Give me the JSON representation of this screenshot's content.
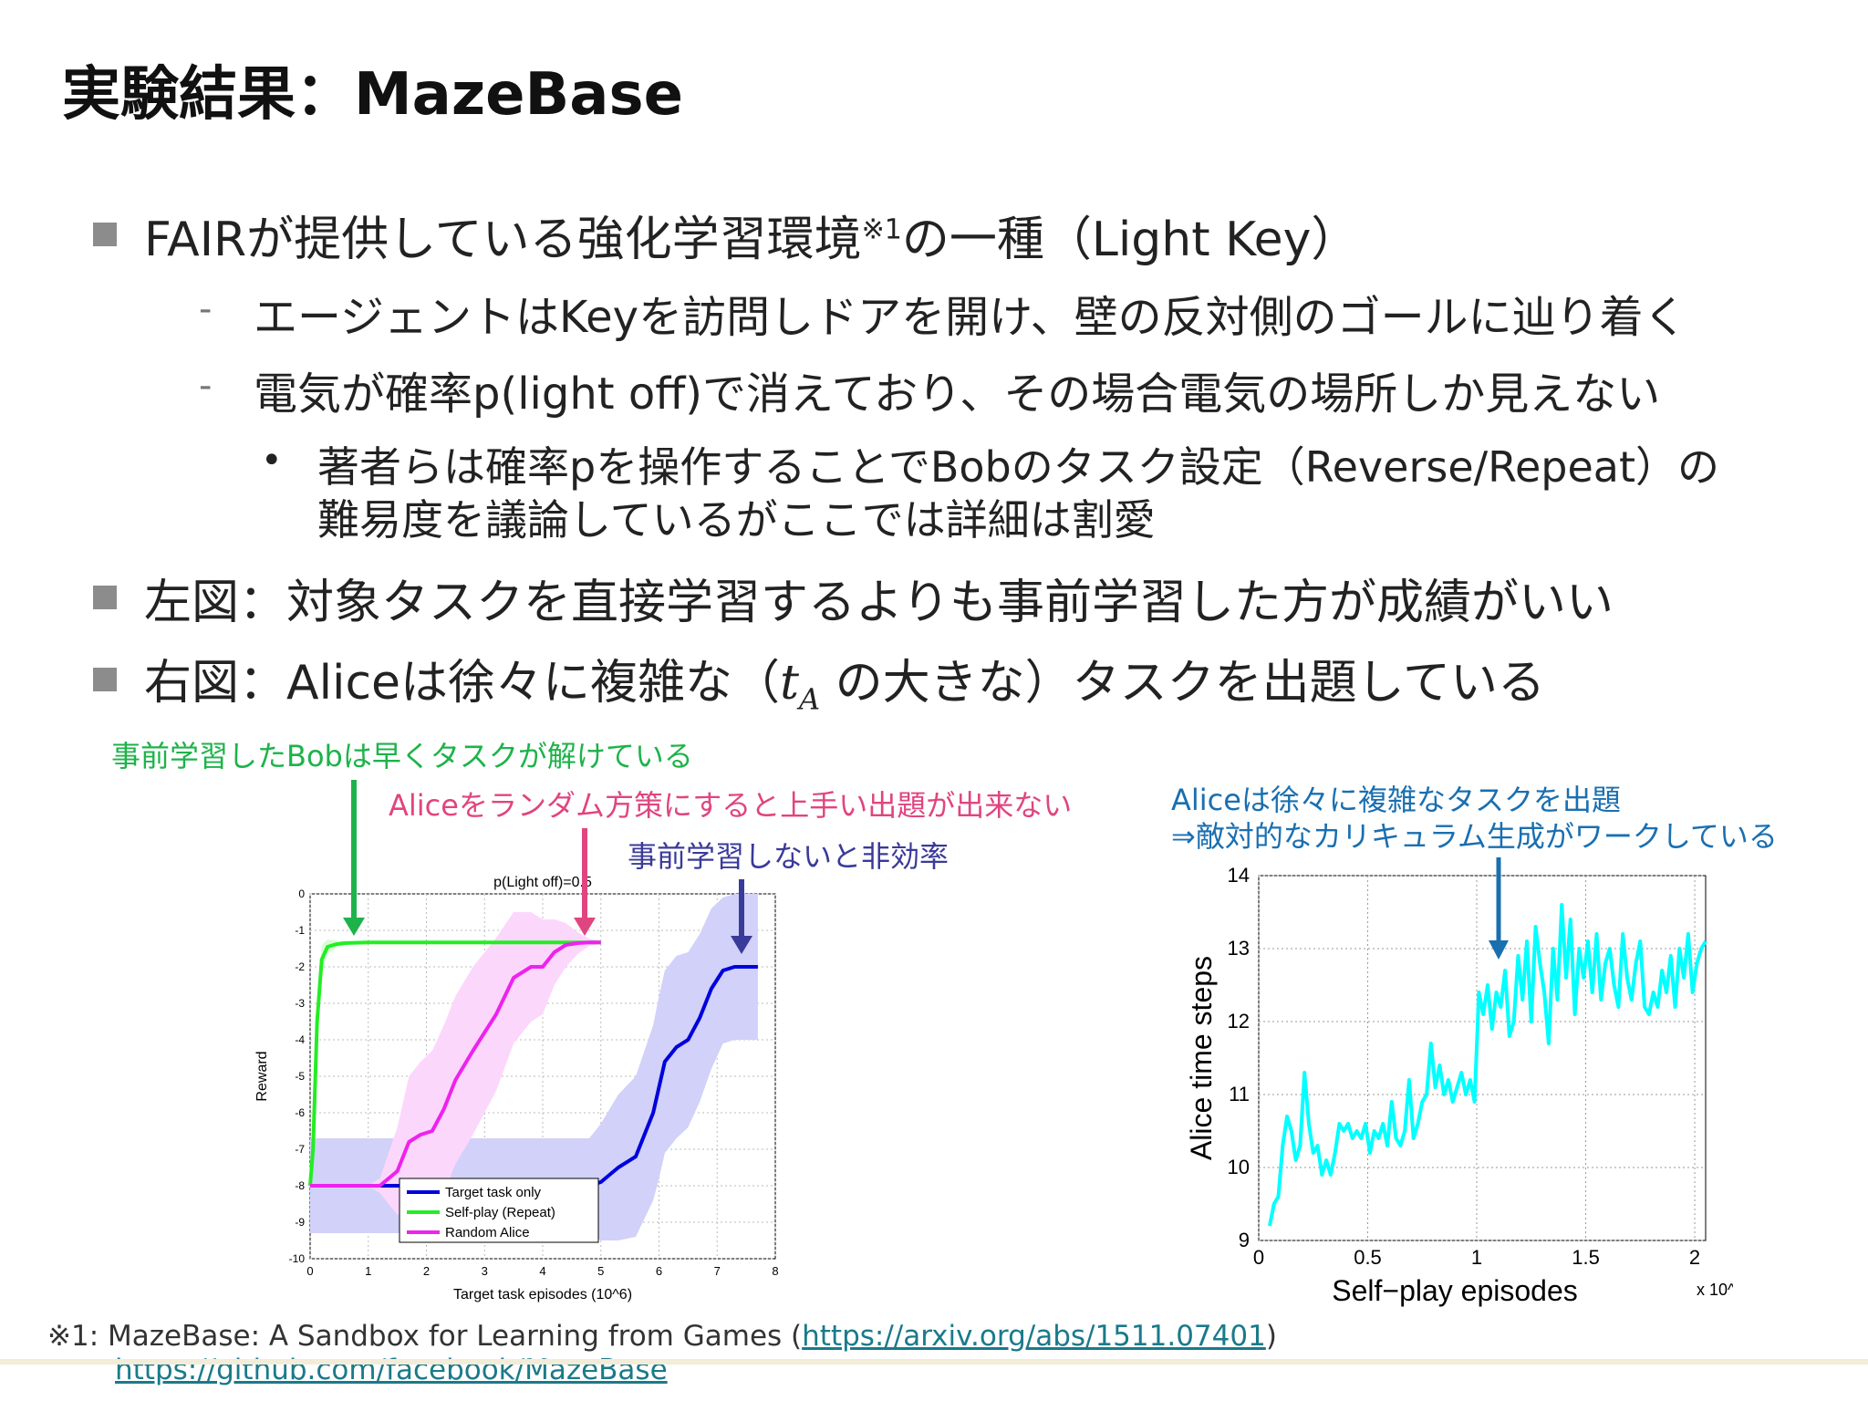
{
  "title": "実験結果：MazeBase",
  "bullets": {
    "b1": {
      "text": "FAIRが提供している強化学習環境",
      "sup": "※1",
      "rest": "の一種（Light Key）"
    },
    "b1_sub1": "エージェントはKeyを訪問しドアを開け、壁の反対側のゴールに辿り着く",
    "b1_sub2": "電気が確率p(light off)で消えており、その場合電気の場所しか見えない",
    "b1_sub2_item_line1": "著者らは確率pを操作することでBobのタスク設定（Reverse/Repeat）の",
    "b1_sub2_item_line2": "難易度を議論しているがここでは詳細は割愛",
    "b2": "左図：対象タスクを直接学習するよりも事前学習した方が成績がいい",
    "b3_pre": "右図：Aliceは徐々に複雑な（",
    "b3_math": "t",
    "b3_sub": "A",
    "b3_post": " の大きな）タスクを出題している"
  },
  "annotations": {
    "green": "事前学習したBobは早くタスクが解けている",
    "pink": "Aliceをランダム方策にすると上手い出題が出来ない",
    "navy": "事前学習しないと非効率",
    "blue_line1": "Aliceは徐々に複雑なタスクを出題",
    "blue_line2": "⇒敵対的なカリキュラム生成がワークしている"
  },
  "colors": {
    "green": "#1db34a",
    "pink": "#e0457f",
    "navy": "#3a3a9a",
    "blue": "#1a6fb0",
    "cyan": "#00ffff"
  },
  "footnote": {
    "mark": "※1: ",
    "text": "MazeBase: A Sandbox for Learning from Games (",
    "link1": "https://arxiv.org/abs/1511.07401",
    "close": ")",
    "link2": "https://github.com/facebook/MazeBase"
  },
  "chart_data": [
    {
      "type": "line",
      "title": "p(Light off)=0.5",
      "xlabel": "Target task episodes (10^6)",
      "ylabel": "Reward",
      "xlim": [
        0,
        8
      ],
      "ylim": [
        -10,
        0
      ],
      "xticks": [
        "0",
        "1",
        "2",
        "3",
        "4",
        "5",
        "6",
        "7",
        "8"
      ],
      "yticks": [
        "0",
        "-1",
        "-2",
        "-3",
        "-4",
        "-5",
        "-6",
        "-7",
        "-8",
        "-9",
        "-10"
      ],
      "grid": true,
      "legend": "bottom-center",
      "series": [
        {
          "name": "Target task only",
          "color": "#0000dd",
          "x": [
            0,
            4.8,
            5.0,
            5.3,
            5.6,
            5.9,
            6.0,
            6.1,
            6.3,
            6.5,
            6.7,
            6.9,
            7.1,
            7.3,
            7.5,
            7.7
          ],
          "y": [
            -8,
            -8,
            -7.9,
            -7.5,
            -7.2,
            -6.0,
            -5.3,
            -4.6,
            -4.2,
            -4.0,
            -3.4,
            -2.6,
            -2.1,
            -2.0,
            -2.0,
            -2.0
          ],
          "band": [
            1.3,
            1.3,
            1.6,
            2.0,
            2.2,
            2.4,
            2.5,
            2.5,
            2.5,
            2.4,
            2.3,
            2.2,
            2.0,
            2.0,
            2.0,
            2.0
          ]
        },
        {
          "name": "Self-play (Repeat)",
          "color": "#22ee22",
          "x": [
            0,
            0.05,
            0.12,
            0.2,
            0.3,
            0.45,
            0.6,
            1.0,
            2.0,
            3.0,
            4.0,
            5.0
          ],
          "y": [
            -8,
            -7.0,
            -3.5,
            -1.8,
            -1.45,
            -1.38,
            -1.35,
            -1.33,
            -1.33,
            -1.33,
            -1.33,
            -1.33
          ],
          "band": [
            0,
            0.3,
            0.6,
            0.4,
            0.2,
            0.1,
            0.05,
            0.02,
            0.02,
            0.02,
            0.02,
            0.02
          ]
        },
        {
          "name": "Random Alice",
          "color": "#ee22ee",
          "x": [
            0,
            1.0,
            1.2,
            1.5,
            1.7,
            1.9,
            2.1,
            2.3,
            2.5,
            2.8,
            3.0,
            3.2,
            3.5,
            3.8,
            4.0,
            4.2,
            4.4,
            4.6,
            4.8,
            5.0
          ],
          "y": [
            -8,
            -8,
            -8,
            -7.6,
            -6.8,
            -6.6,
            -6.5,
            -5.9,
            -5.1,
            -4.3,
            -3.8,
            -3.3,
            -2.3,
            -2.0,
            -2.0,
            -1.6,
            -1.4,
            -1.35,
            -1.33,
            -1.33
          ],
          "band": [
            0,
            0,
            0.2,
            1.2,
            1.8,
            2.0,
            2.2,
            2.3,
            2.3,
            2.3,
            2.2,
            2.1,
            1.8,
            1.5,
            1.3,
            0.9,
            0.6,
            0.3,
            0.1,
            0.05
          ]
        }
      ]
    },
    {
      "type": "line",
      "xlabel": "Self−play episodes",
      "ylabel": "Alice time steps",
      "xlim": [
        0,
        2.05
      ],
      "ylim": [
        9,
        14
      ],
      "xticks": [
        "0",
        "0.5",
        "1",
        "1.5",
        "2"
      ],
      "yticks": [
        "9",
        "10",
        "11",
        "12",
        "13",
        "14"
      ],
      "x_multiplier": "x 10^6",
      "grid": true,
      "series": [
        {
          "color": "#00ffff",
          "x": [
            0.05,
            0.07,
            0.09,
            0.11,
            0.13,
            0.15,
            0.17,
            0.19,
            0.21,
            0.23,
            0.25,
            0.27,
            0.29,
            0.31,
            0.33,
            0.35,
            0.37,
            0.39,
            0.41,
            0.43,
            0.45,
            0.47,
            0.49,
            0.51,
            0.53,
            0.55,
            0.57,
            0.59,
            0.61,
            0.63,
            0.65,
            0.67,
            0.69,
            0.71,
            0.73,
            0.75,
            0.77,
            0.79,
            0.81,
            0.83,
            0.85,
            0.87,
            0.89,
            0.91,
            0.93,
            0.95,
            0.97,
            0.99,
            1.01,
            1.03,
            1.05,
            1.07,
            1.09,
            1.11,
            1.13,
            1.15,
            1.17,
            1.19,
            1.21,
            1.23,
            1.25,
            1.27,
            1.29,
            1.31,
            1.33,
            1.35,
            1.37,
            1.39,
            1.41,
            1.43,
            1.45,
            1.47,
            1.49,
            1.51,
            1.53,
            1.55,
            1.57,
            1.59,
            1.61,
            1.63,
            1.65,
            1.67,
            1.69,
            1.71,
            1.73,
            1.75,
            1.77,
            1.79,
            1.81,
            1.83,
            1.85,
            1.87,
            1.89,
            1.91,
            1.93,
            1.95,
            1.97,
            1.99,
            2.01,
            2.03,
            2.05
          ],
          "y": [
            9.2,
            9.5,
            9.6,
            10.3,
            10.7,
            10.5,
            10.1,
            10.3,
            11.3,
            10.6,
            10.2,
            10.3,
            9.9,
            10.1,
            9.9,
            10.2,
            10.6,
            10.5,
            10.6,
            10.4,
            10.5,
            10.4,
            10.6,
            10.2,
            10.5,
            10.4,
            10.6,
            10.3,
            10.9,
            10.4,
            10.3,
            10.5,
            11.2,
            10.4,
            10.6,
            10.9,
            11.0,
            11.7,
            11.1,
            11.4,
            11.0,
            11.2,
            10.9,
            11.1,
            11.3,
            11.0,
            11.2,
            10.9,
            12.4,
            12.1,
            12.5,
            11.9,
            12.4,
            12.2,
            12.7,
            11.8,
            12.0,
            12.9,
            12.3,
            13.1,
            12.0,
            13.3,
            12.8,
            12.4,
            11.7,
            13.0,
            12.3,
            13.6,
            12.6,
            13.4,
            12.1,
            13.0,
            12.6,
            13.1,
            12.4,
            13.2,
            12.3,
            12.8,
            13.0,
            12.5,
            12.2,
            13.2,
            12.6,
            12.3,
            12.8,
            13.1,
            12.2,
            12.1,
            12.4,
            12.2,
            12.7,
            12.4,
            12.9,
            12.2,
            13.0,
            12.6,
            13.2,
            12.4,
            12.8,
            13.0,
            13.1
          ],
          "band": []
        }
      ]
    }
  ]
}
